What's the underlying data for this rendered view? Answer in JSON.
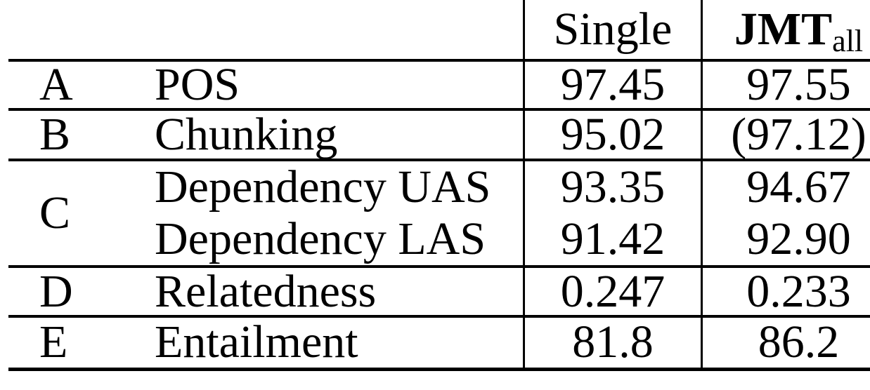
{
  "header": {
    "single_label": "Single",
    "jmt_base": "JMT",
    "jmt_subscript": "all"
  },
  "rows": [
    {
      "id": "A",
      "task": "POS",
      "single": "97.45",
      "jmt": "97.55"
    },
    {
      "id": "B",
      "task": "Chunking",
      "single": "95.02",
      "jmt": "(97.12)"
    },
    {
      "id": "C",
      "task_line1": "Dependency UAS",
      "task_line2": "Dependency LAS",
      "single_line1": "93.35",
      "single_line2": "91.42",
      "jmt_line1": "94.67",
      "jmt_line2": "92.90"
    },
    {
      "id": "D",
      "task": "Relatedness",
      "single": "0.247",
      "jmt": "0.233"
    },
    {
      "id": "E",
      "task": "Entailment",
      "single": "81.8",
      "jmt": "86.2"
    }
  ],
  "colors": {
    "text": "#000000",
    "rule": "#000000",
    "background": "#ffffff"
  },
  "chart_data": {
    "type": "table",
    "columns": [
      "row",
      "task",
      "Single",
      "JMT_all"
    ],
    "rows": [
      [
        "A",
        "POS",
        97.45,
        97.55
      ],
      [
        "B",
        "Chunking",
        95.02,
        "(97.12)"
      ],
      [
        "C",
        "Dependency UAS",
        93.35,
        94.67
      ],
      [
        "C",
        "Dependency LAS",
        91.42,
        92.9
      ],
      [
        "D",
        "Relatedness",
        0.247,
        0.233
      ],
      [
        "E",
        "Entailment",
        81.8,
        86.2
      ]
    ]
  }
}
